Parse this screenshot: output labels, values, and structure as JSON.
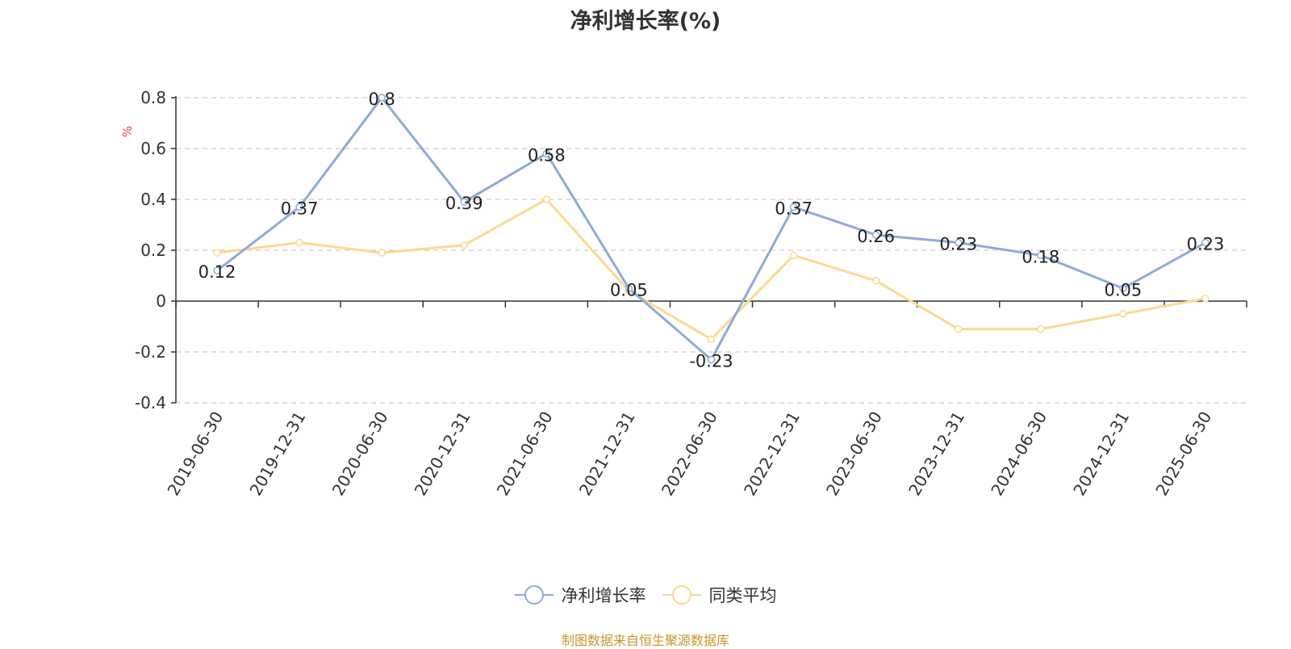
{
  "title": "净利增长率(%)",
  "source_note": "制图数据来自恒生聚源数据库",
  "colors": {
    "series1": "#8daad9",
    "series2": "#fbd98e",
    "ylabel": "#e8443a"
  },
  "chart_data": {
    "type": "line",
    "title": "净利增长率(%)",
    "xlabel": "",
    "ylabel": "%",
    "ylim": [
      -0.4,
      0.8
    ],
    "yticks": [
      -0.4,
      -0.2,
      0,
      0.2,
      0.4,
      0.6,
      0.8
    ],
    "ytick_labels": [
      "-0.4",
      "-0.2",
      "0",
      "0.2",
      "0.4",
      "0.6",
      "0.8"
    ],
    "grid": true,
    "legend_position": "bottom",
    "categories": [
      "2019-06-30",
      "2019-12-31",
      "2020-06-30",
      "2020-12-31",
      "2021-06-30",
      "2021-12-31",
      "2022-06-30",
      "2022-12-31",
      "2023-06-30",
      "2023-12-31",
      "2024-06-30",
      "2024-12-31",
      "2025-06-30"
    ],
    "series": [
      {
        "name": "净利增长率",
        "values": [
          0.12,
          0.37,
          0.8,
          0.39,
          0.58,
          0.05,
          -0.23,
          0.37,
          0.26,
          0.23,
          0.18,
          0.05,
          0.23
        ],
        "labels": [
          "0.12",
          "0.37",
          "0.8",
          "0.39",
          "0.58",
          "0.05",
          "-0.23",
          "0.37",
          "0.26",
          "0.23",
          "0.18",
          "0.05",
          "0.23"
        ]
      },
      {
        "name": "同类平均",
        "values": [
          0.19,
          0.23,
          0.19,
          0.22,
          0.4,
          0.04,
          -0.15,
          0.18,
          0.08,
          -0.11,
          -0.11,
          -0.05,
          0.01
        ]
      }
    ]
  }
}
